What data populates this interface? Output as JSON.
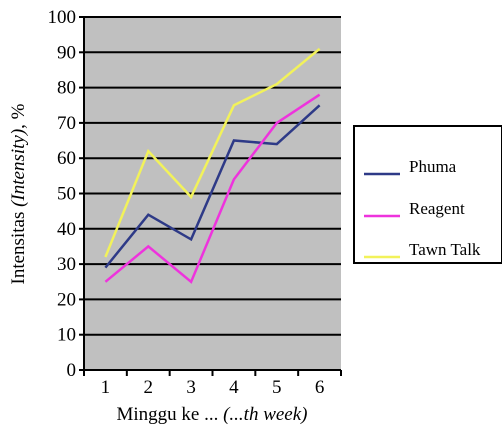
{
  "chart_data": {
    "type": "line",
    "title": "",
    "xlabel_plain": "Minggu ke ...",
    "xlabel_italic": "(...th week)",
    "ylabel_plain": "Intensitas",
    "ylabel_italic": "(Intensity)",
    "ylabel_unit": ", %",
    "x": [
      1,
      2,
      3,
      4,
      5,
      6
    ],
    "xlim": [
      0.5,
      6.5
    ],
    "ylim": [
      0,
      100
    ],
    "yticks": [
      0,
      10,
      20,
      30,
      40,
      50,
      60,
      70,
      80,
      90,
      100
    ],
    "grid": true,
    "legend_position": "right",
    "background_color": "#c0c0c0",
    "series": [
      {
        "name": "Phuma",
        "color": "#2e3a87",
        "values": [
          29,
          44,
          37,
          65,
          64,
          75
        ]
      },
      {
        "name": "Reagent",
        "color": "#ee33dd",
        "values": [
          25,
          35,
          25,
          54,
          70,
          78
        ]
      },
      {
        "name": "Tawn Talk",
        "color": "#f2f25a",
        "values": [
          32,
          62,
          49,
          75,
          81,
          91
        ]
      }
    ]
  }
}
